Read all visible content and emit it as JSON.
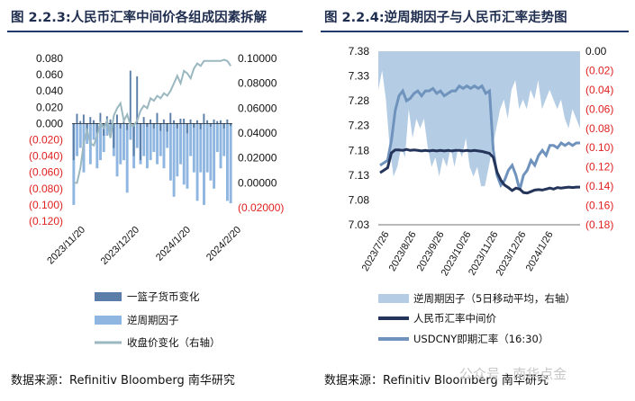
{
  "left_panel": {
    "title": "图 2.2.3:人民币汇率中间价各组成因素拆解",
    "source": "数据来源：Refinitiv Bloomberg 南华研究"
  },
  "right_panel": {
    "title": "图 2.2.4:逆周期因子与人民币汇率走势图",
    "source": "数据来源：Refinitiv Bloomberg 南华研究"
  },
  "watermark": "公众号 · 南华点金",
  "colors": {
    "basket": "#5a7ea8",
    "ccf_bar": "#8fb6e0",
    "close_line": "#9bb8c0",
    "ccf_area": "#b4cde4",
    "mid_line": "#24345a",
    "usdcny_line": "#6f93bd",
    "negative_tick": "#e02020",
    "title": "#1f2d4e",
    "rule": "#1f3a6b"
  },
  "chart_data": [
    {
      "type": "bar",
      "x_ticks": [
        "2023/11/20",
        "2023/12/20",
        "2024/1/20",
        "2024/2/20"
      ],
      "y_left_ticks": [
        "0.080",
        "0.060",
        "0.040",
        "0.020",
        "0.000",
        "(0.020)",
        "(0.040)",
        "(0.060)",
        "(0.080)",
        "(0.100)",
        "(0.120)"
      ],
      "y_left_range": [
        -0.12,
        0.08
      ],
      "y_right_ticks": [
        "0.10000",
        "0.08000",
        "0.06000",
        "0.04000",
        "0.02000",
        "0.00000",
        "(0.02000)"
      ],
      "y_right_range": [
        -0.03,
        0.1
      ],
      "series": [
        {
          "name": "一篮子货币变化",
          "type": "bar",
          "axis": "left",
          "values": [
            -0.045,
            0.012,
            0.003,
            0.011,
            -0.01,
            0.008,
            0.004,
            -0.012,
            0.013,
            -0.015,
            0.009,
            0.005,
            -0.03,
            0.011,
            -0.006,
            0.004,
            -0.008,
            0.065,
            -0.04,
            0.058,
            -0.045,
            0.008,
            -0.004,
            0.005,
            -0.006,
            0.013,
            -0.009,
            0.005,
            -0.01,
            0.013,
            0.004,
            -0.006,
            0.006,
            0.006,
            -0.012,
            0.005,
            -0.005,
            0.004,
            -0.007,
            0.012,
            0.004,
            -0.004,
            0.005,
            0.003,
            0.004,
            -0.006,
            0.005,
            -0.003
          ]
        },
        {
          "name": "逆周期因子",
          "type": "bar",
          "axis": "left",
          "values": [
            -0.1,
            -0.04,
            -0.03,
            -0.06,
            -0.025,
            -0.05,
            -0.02,
            -0.055,
            -0.045,
            -0.035,
            -0.015,
            -0.01,
            -0.04,
            -0.065,
            -0.05,
            -0.045,
            -0.085,
            -0.02,
            -0.055,
            -0.03,
            -0.05,
            -0.04,
            -0.055,
            -0.045,
            -0.035,
            -0.05,
            -0.04,
            -0.055,
            -0.03,
            -0.07,
            -0.09,
            -0.065,
            -0.05,
            -0.075,
            -0.08,
            -0.04,
            -0.06,
            -0.095,
            -0.06,
            -0.1,
            -0.06,
            -0.07,
            -0.08,
            -0.035,
            -0.055,
            -0.04,
            -0.095,
            -0.098
          ]
        },
        {
          "name": "收盘价变化（右轴）",
          "type": "line",
          "axis": "right",
          "values": [
            0.0,
            0.0,
            0.012,
            0.032,
            0.042,
            0.032,
            0.03,
            0.038,
            0.048,
            0.044,
            0.05,
            0.036,
            0.054,
            0.06,
            0.064,
            0.05,
            0.055,
            0.046,
            0.046,
            0.05,
            0.058,
            0.062,
            0.06,
            0.068,
            0.066,
            0.07,
            0.068,
            0.072,
            0.07,
            0.074,
            0.08,
            0.086,
            0.08,
            0.09,
            0.088,
            0.084,
            0.092,
            0.096,
            0.094,
            0.098,
            0.098,
            0.098,
            0.098,
            0.098,
            0.098,
            0.099,
            0.098,
            0.094
          ]
        }
      ]
    },
    {
      "type": "line",
      "x_ticks": [
        "2023/7/26",
        "2023/8/26",
        "2023/9/26",
        "2023/10/26",
        "2023/11/26",
        "2023/12/26",
        "2024/1/26"
      ],
      "y_left_ticks": [
        "7.38",
        "7.33",
        "7.28",
        "7.23",
        "7.18",
        "7.13",
        "7.08",
        "7.03"
      ],
      "y_left_range": [
        7.03,
        7.38
      ],
      "y_right_ticks": [
        "0.00",
        "(0.02)",
        "(0.04)",
        "(0.06)",
        "(0.08)",
        "(0.10)",
        "(0.12)",
        "(0.14)",
        "(0.16)",
        "(0.18)"
      ],
      "y_right_range": [
        -0.18,
        0.0
      ],
      "series": [
        {
          "name": "逆周期因子（5日移动平均，右轴）",
          "type": "area",
          "axis": "right",
          "values": [
            -0.04,
            -0.02,
            -0.05,
            -0.1,
            -0.13,
            -0.12,
            -0.1,
            -0.11,
            -0.06,
            -0.09,
            -0.07,
            -0.08,
            -0.07,
            -0.1,
            -0.12,
            -0.11,
            -0.13,
            -0.11,
            -0.12,
            -0.1,
            -0.12,
            -0.1,
            -0.11,
            -0.09,
            -0.12,
            -0.13,
            -0.12,
            -0.14,
            -0.14,
            -0.12,
            -0.1,
            -0.08,
            -0.06,
            -0.05,
            -0.07,
            -0.04,
            -0.03,
            -0.06,
            -0.05,
            -0.06,
            -0.04,
            -0.05,
            -0.03,
            -0.06,
            -0.05,
            -0.04,
            -0.05,
            -0.06,
            -0.05,
            -0.07,
            -0.08,
            -0.06,
            -0.07,
            -0.08
          ]
        },
        {
          "name": "人民币汇率中间价",
          "type": "line",
          "axis": "left",
          "values": [
            7.135,
            7.14,
            7.145,
            7.175,
            7.181,
            7.181,
            7.18,
            7.182,
            7.18,
            7.181,
            7.18,
            7.179,
            7.18,
            7.179,
            7.18,
            7.179,
            7.18,
            7.179,
            7.18,
            7.179,
            7.18,
            7.18,
            7.179,
            7.18,
            7.179,
            7.18,
            7.179,
            7.178,
            7.176,
            7.174,
            7.166,
            7.136,
            7.12,
            7.11,
            7.105,
            7.099,
            7.104,
            7.102,
            7.095,
            7.094,
            7.097,
            7.1,
            7.101,
            7.1,
            7.102,
            7.104,
            7.102,
            7.105,
            7.104,
            7.105,
            7.106,
            7.105,
            7.106,
            7.106
          ]
        },
        {
          "name": "USDCNY即期汇率（16:30）",
          "type": "line",
          "axis": "left",
          "values": [
            7.15,
            7.155,
            7.16,
            7.2,
            7.26,
            7.29,
            7.3,
            7.28,
            7.285,
            7.295,
            7.3,
            7.29,
            7.3,
            7.3,
            7.305,
            7.295,
            7.3,
            7.29,
            7.295,
            7.3,
            7.3,
            7.31,
            7.305,
            7.31,
            7.305,
            7.31,
            7.305,
            7.31,
            7.295,
            7.3,
            7.18,
            7.13,
            7.11,
            7.12,
            7.14,
            7.15,
            7.13,
            7.1,
            7.13,
            7.14,
            7.16,
            7.15,
            7.17,
            7.18,
            7.17,
            7.19,
            7.19,
            7.185,
            7.195,
            7.19,
            7.195,
            7.19,
            7.195,
            7.195
          ]
        }
      ]
    }
  ]
}
